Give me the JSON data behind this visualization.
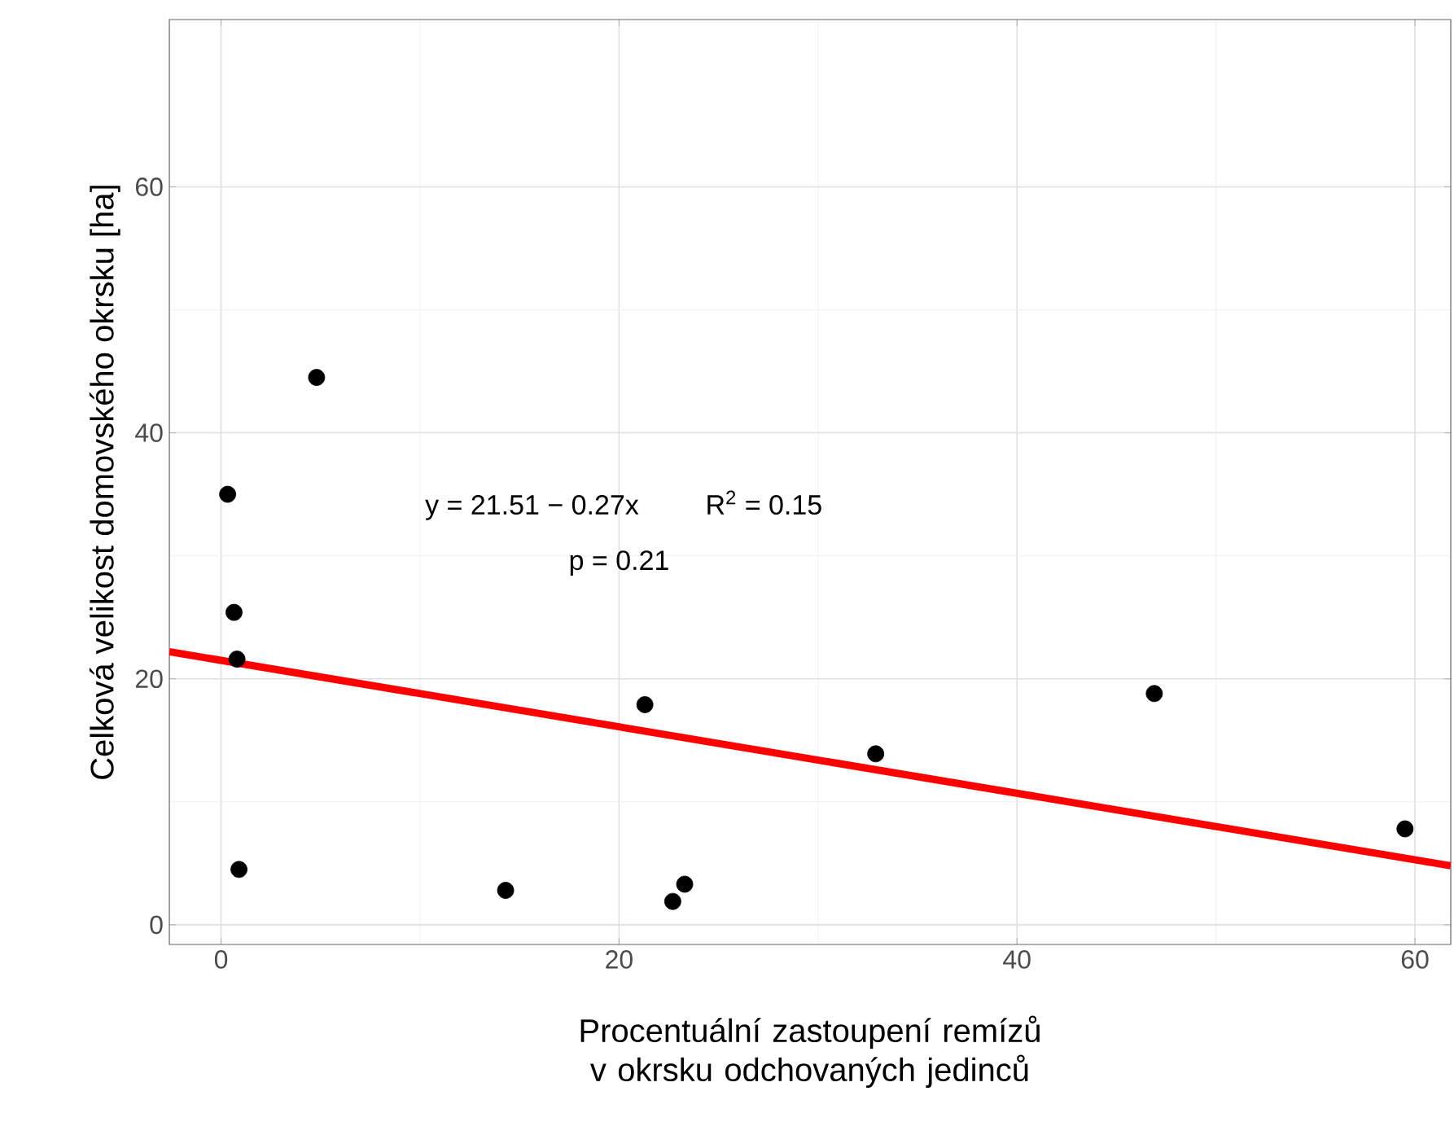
{
  "chart_data": {
    "type": "scatter",
    "xlabel": "Procentuální zastoupení remízů v okrsku odchovaných jedinců",
    "ylabel": "Celková velikost domovského okrsku [ha]",
    "xlim": [
      -2.6,
      61.8
    ],
    "ylim": [
      -1.6,
      73.6
    ],
    "xticks": [
      0,
      20,
      40,
      60
    ],
    "yticks": [
      0,
      20,
      40,
      60
    ],
    "grid": true,
    "marker": "circle",
    "series": [
      {
        "color": "#000000",
        "x": [
          0.33,
          4.8,
          0.65,
          0.8,
          0.9,
          14.3,
          21.3,
          22.7,
          23.3,
          32.9,
          46.9,
          59.5
        ],
        "values": [
          35.0,
          44.5,
          25.4,
          21.6,
          4.5,
          2.8,
          17.9,
          1.9,
          3.3,
          13.9,
          18.8,
          7.8
        ]
      },
      {
        "type": "line",
        "marker": "none",
        "color": "#ff0000",
        "x": [
          -2.6,
          61.8
        ],
        "values": [
          22.2,
          4.8
        ]
      }
    ],
    "annotations": [
      "y = 21.51 − 0.27x",
      "R$^{2}$ = 0.15",
      "p = 0.21"
    ]
  }
}
